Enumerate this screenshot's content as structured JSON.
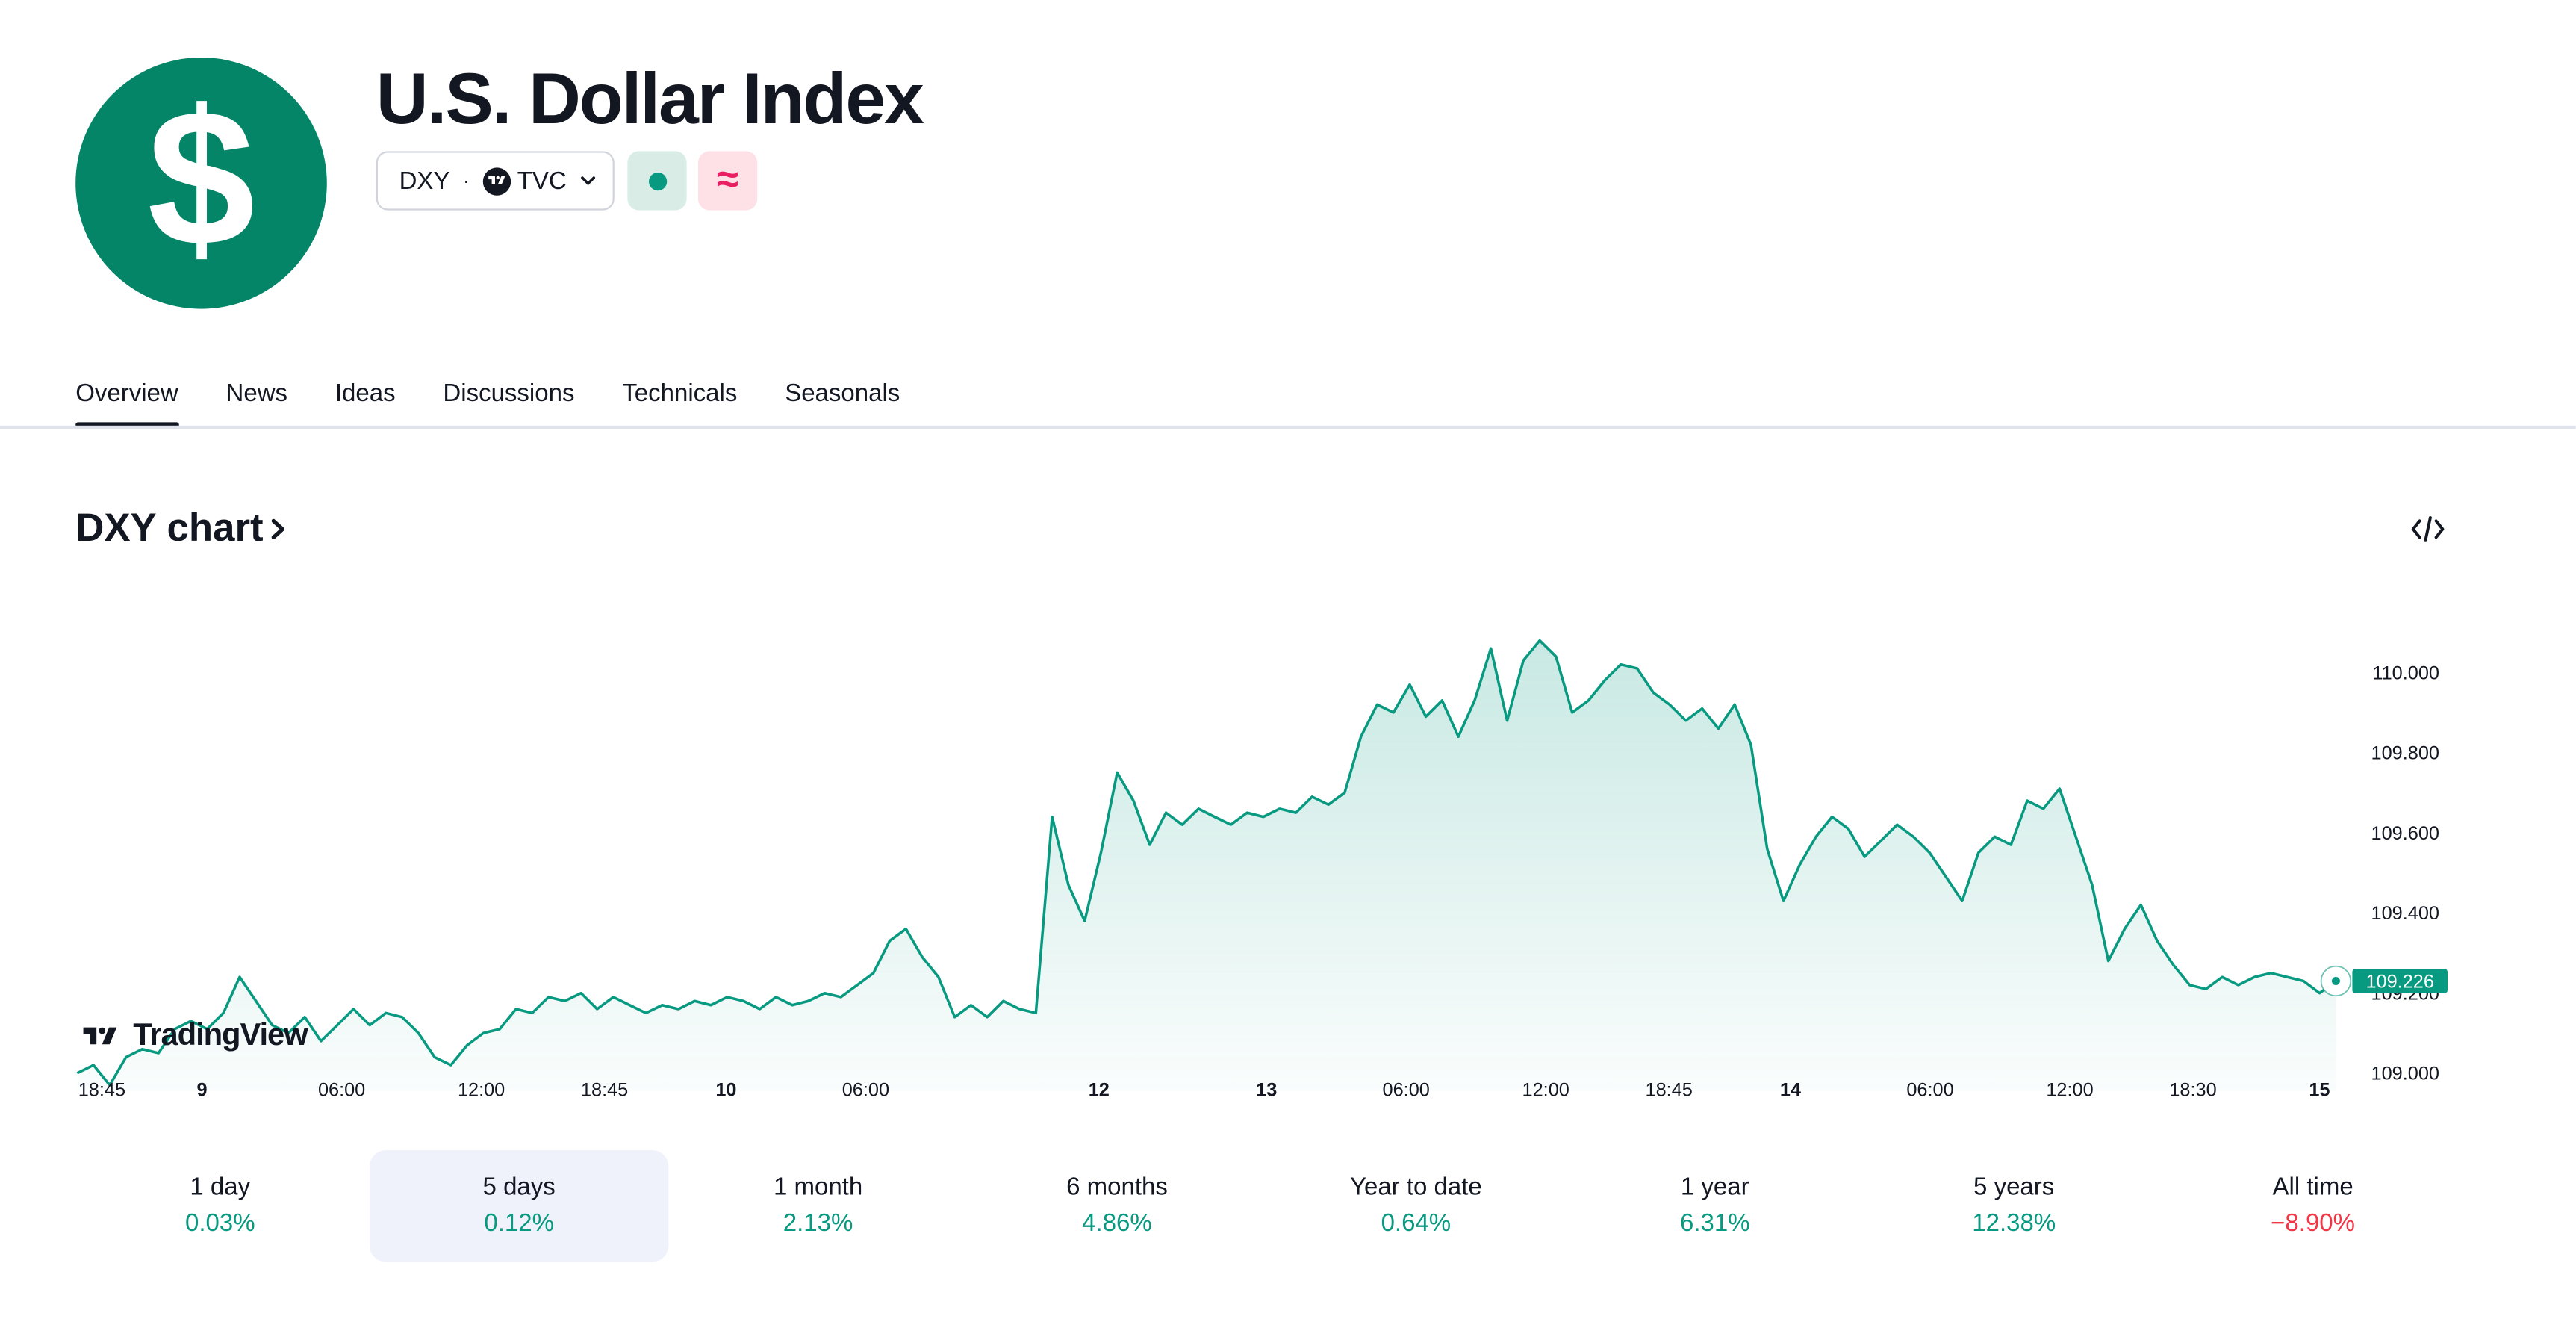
{
  "header": {
    "title": "U.S. Dollar Index",
    "symbol": "DXY",
    "separator": "·",
    "exchange": "TVC",
    "logo_glyph": "$",
    "logo_color": "#058567",
    "status_market_icon": "market-open-dot-icon",
    "status_delay_glyph": "≈"
  },
  "tabs": [
    {
      "label": "Overview",
      "active": true
    },
    {
      "label": "News"
    },
    {
      "label": "Ideas"
    },
    {
      "label": "Discussions"
    },
    {
      "label": "Technicals"
    },
    {
      "label": "Seasonals"
    }
  ],
  "chart_section": {
    "title": "DXY chart",
    "embed_icon": "code-embed-icon",
    "watermark": "TradingView"
  },
  "chart_data": {
    "type": "area",
    "ylim": [
      108.98,
      110.12
    ],
    "y_ticks": [
      "110.000",
      "109.800",
      "109.600",
      "109.400",
      "109.200",
      "109.000"
    ],
    "y_tick_values": [
      110.0,
      109.8,
      109.6,
      109.4,
      109.2,
      109.0
    ],
    "x_ticks": [
      {
        "label": "18:45",
        "bold": false
      },
      {
        "label": "9",
        "bold": true
      },
      {
        "label": "06:00",
        "bold": false
      },
      {
        "label": "12:00",
        "bold": false
      },
      {
        "label": "18:45",
        "bold": false
      },
      {
        "label": "10",
        "bold": true
      },
      {
        "label": "06:00",
        "bold": false
      },
      {
        "label": "12",
        "bold": true
      },
      {
        "label": "13",
        "bold": true
      },
      {
        "label": "06:00",
        "bold": false
      },
      {
        "label": "12:00",
        "bold": false
      },
      {
        "label": "18:45",
        "bold": false
      },
      {
        "label": "14",
        "bold": true
      },
      {
        "label": "06:00",
        "bold": false
      },
      {
        "label": "12:00",
        "bold": false
      },
      {
        "label": "18:30",
        "bold": false
      },
      {
        "label": "15",
        "bold": true
      }
    ],
    "last_value": "109.226",
    "line_color": "#089981",
    "series": [
      {
        "values": [
          109.0,
          109.02,
          108.97,
          109.04,
          109.06,
          109.05,
          109.11,
          109.13,
          109.11,
          109.15,
          109.24,
          109.18,
          109.12,
          109.1,
          109.14,
          109.08,
          109.12,
          109.16,
          109.12,
          109.15,
          109.14,
          109.1,
          109.04,
          109.02,
          109.07,
          109.1,
          109.11,
          109.16,
          109.15,
          109.19,
          109.18,
          109.2,
          109.16,
          109.19,
          109.17,
          109.15,
          109.17,
          109.16,
          109.18,
          109.17,
          109.19,
          109.18,
          109.16,
          109.19,
          109.17,
          109.18,
          109.2,
          109.19,
          109.22,
          109.25,
          109.33,
          109.36,
          109.29,
          109.24,
          109.14,
          109.17,
          109.14,
          109.18,
          109.16,
          109.15,
          109.64,
          109.47,
          109.38,
          109.55,
          109.75,
          109.68,
          109.57,
          109.65,
          109.62,
          109.66,
          109.64,
          109.62,
          109.65,
          109.64,
          109.66,
          109.65,
          109.69,
          109.67,
          109.7,
          109.84,
          109.92,
          109.9,
          109.97,
          109.89,
          109.93,
          109.84,
          109.93,
          110.06,
          109.88,
          110.03,
          110.08,
          110.04,
          109.9,
          109.93,
          109.98,
          110.02,
          110.01,
          109.95,
          109.92,
          109.88,
          109.91,
          109.86,
          109.92,
          109.82,
          109.56,
          109.43,
          109.52,
          109.59,
          109.64,
          109.61,
          109.54,
          109.58,
          109.62,
          109.59,
          109.55,
          109.49,
          109.43,
          109.55,
          109.59,
          109.57,
          109.68,
          109.66,
          109.71,
          109.59,
          109.47,
          109.28,
          109.36,
          109.42,
          109.33,
          109.27,
          109.22,
          109.21,
          109.24,
          109.22,
          109.24,
          109.25,
          109.24,
          109.23,
          109.2,
          109.23
        ]
      }
    ]
  },
  "periods": [
    {
      "label": "1 day",
      "change": "0.03%",
      "direction": "up",
      "active": false
    },
    {
      "label": "5 days",
      "change": "0.12%",
      "direction": "up",
      "active": true
    },
    {
      "label": "1 month",
      "change": "2.13%",
      "direction": "up",
      "active": false
    },
    {
      "label": "6 months",
      "change": "4.86%",
      "direction": "up",
      "active": false
    },
    {
      "label": "Year to date",
      "change": "0.64%",
      "direction": "up",
      "active": false
    },
    {
      "label": "1 year",
      "change": "6.31%",
      "direction": "up",
      "active": false
    },
    {
      "label": "5 years",
      "change": "12.38%",
      "direction": "up",
      "active": false
    },
    {
      "label": "All time",
      "change": "−8.90%",
      "direction": "down",
      "active": false
    }
  ],
  "colors": {
    "positive": "#089981",
    "negative": "#f23645",
    "text": "#131722"
  }
}
